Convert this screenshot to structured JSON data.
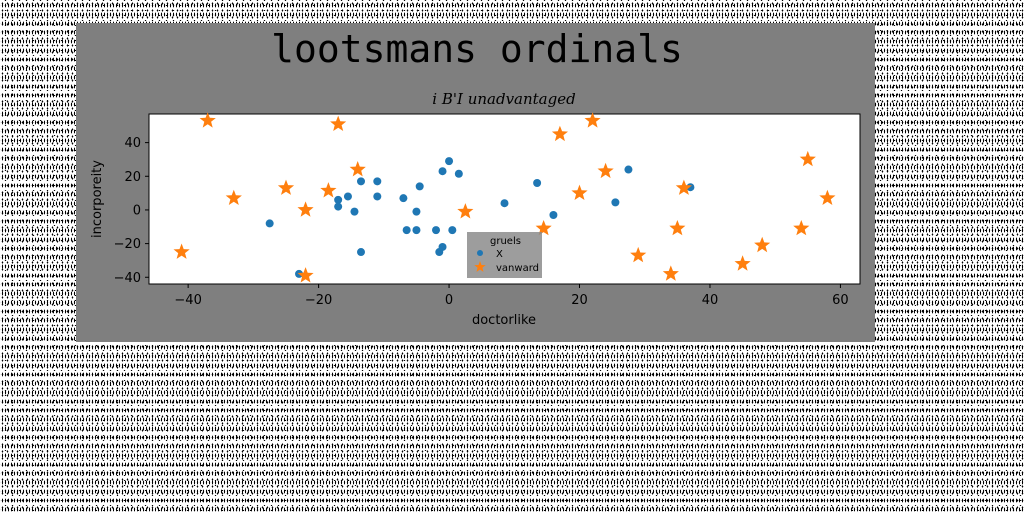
{
  "chart_data": {
    "type": "scatter",
    "title": "lootsmans ordinals",
    "subtitle": "i B'I unadvantaged",
    "xlabel": "doctorlike",
    "ylabel": "incorporeity",
    "xlim": [
      -46,
      63
    ],
    "ylim": [
      -44,
      57
    ],
    "xticks": [
      -40,
      -20,
      0,
      20,
      40,
      60
    ],
    "yticks": [
      -40,
      -20,
      0,
      20,
      40
    ],
    "grid": false,
    "legend_title": "gruels",
    "legend_position": "lower-center",
    "series": [
      {
        "name": "X",
        "marker": "circle",
        "color": "#1f77b4",
        "points": [
          [
            -27.5,
            -8
          ],
          [
            -23,
            -38
          ],
          [
            -17,
            6
          ],
          [
            -17,
            2
          ],
          [
            -15.5,
            8
          ],
          [
            -14.5,
            -1
          ],
          [
            -13.5,
            17
          ],
          [
            -13.5,
            -25
          ],
          [
            -11,
            17
          ],
          [
            -11,
            8
          ],
          [
            -7,
            7
          ],
          [
            -6.5,
            -12
          ],
          [
            -5,
            -1
          ],
          [
            -5,
            -12
          ],
          [
            -4.5,
            14
          ],
          [
            -2,
            -12
          ],
          [
            -1.5,
            -25
          ],
          [
            -1,
            -22
          ],
          [
            -1,
            23
          ],
          [
            0,
            29
          ],
          [
            0.5,
            -12
          ],
          [
            1.5,
            21.5
          ],
          [
            8.5,
            4
          ],
          [
            13.5,
            16
          ],
          [
            16,
            -3
          ],
          [
            25.5,
            4.5
          ],
          [
            27.5,
            24
          ],
          [
            37,
            13.5
          ]
        ]
      },
      {
        "name": "vanward",
        "marker": "star",
        "color": "#ff7f0e",
        "points": [
          [
            -41,
            -25
          ],
          [
            -37,
            53
          ],
          [
            -33,
            7
          ],
          [
            -25,
            13
          ],
          [
            -22,
            0
          ],
          [
            -22,
            -39
          ],
          [
            -18.5,
            11.5
          ],
          [
            -17,
            51
          ],
          [
            -14,
            24
          ],
          [
            2.5,
            -1
          ],
          [
            14.5,
            -11
          ],
          [
            17,
            45
          ],
          [
            20,
            10
          ],
          [
            22,
            53
          ],
          [
            24,
            23
          ],
          [
            29,
            -27
          ],
          [
            34,
            -38
          ],
          [
            35,
            -11
          ],
          [
            36,
            13
          ],
          [
            45,
            -32
          ],
          [
            48,
            -21
          ],
          [
            54,
            -11
          ],
          [
            55,
            30
          ],
          [
            58,
            7
          ]
        ]
      }
    ]
  }
}
